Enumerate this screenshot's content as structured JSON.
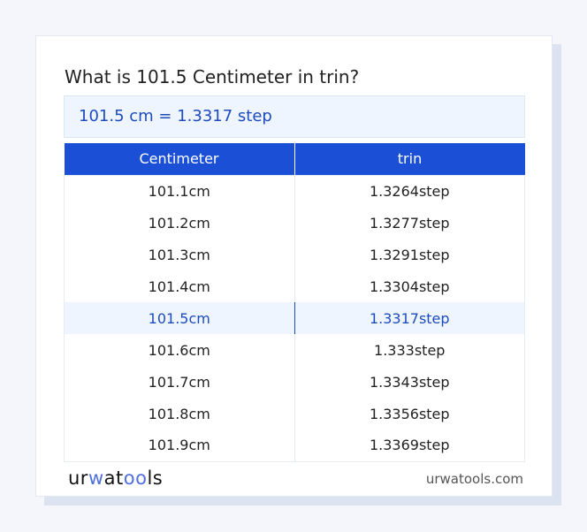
{
  "title": "What is 101.5 Centimeter in trin?",
  "result": "101.5 cm = 1.3317 step",
  "table": {
    "headers": [
      "Centimeter",
      "trin"
    ],
    "rows": [
      [
        "101.1cm",
        "1.3264step"
      ],
      [
        "101.2cm",
        "1.3277step"
      ],
      [
        "101.3cm",
        "1.3291step"
      ],
      [
        "101.4cm",
        "1.3304step"
      ],
      [
        "101.5cm",
        "1.3317step"
      ],
      [
        "101.6cm",
        "1.333step"
      ],
      [
        "101.7cm",
        "1.3343step"
      ],
      [
        "101.8cm",
        "1.3356step"
      ],
      [
        "101.9cm",
        "1.3369step"
      ]
    ],
    "highlight_index": 4
  },
  "footer": {
    "logo_a": "ur",
    "logo_b": "w",
    "logo_c": "at",
    "logo_d": "oo",
    "logo_e": "ls",
    "site": "urwatools.com"
  },
  "colors": {
    "accent": "#1a4fd6",
    "highlight_bg": "#eef5fe"
  }
}
